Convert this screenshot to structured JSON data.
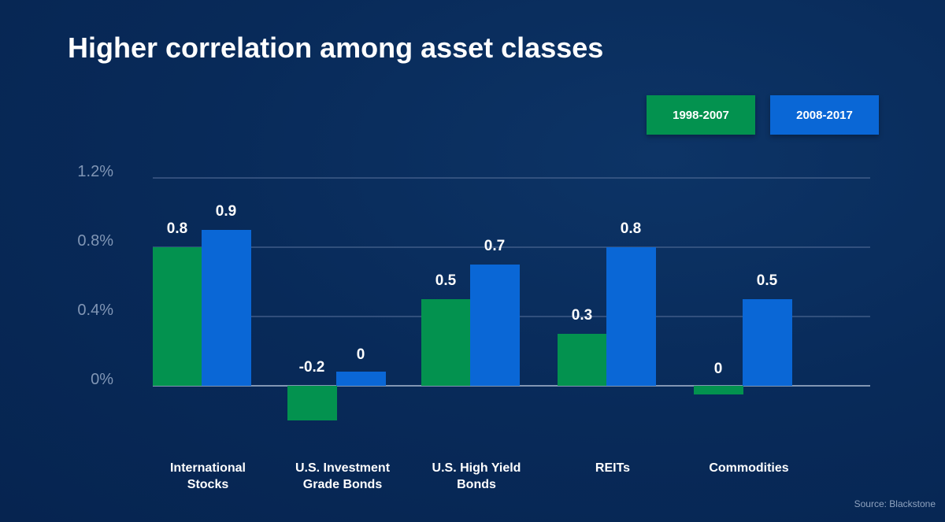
{
  "chart_data": {
    "type": "bar",
    "title": "Higher correlation among asset classes",
    "categories": [
      "International\nStocks",
      "U.S. Investment\nGrade Bonds",
      "U.S. High Yield\nBonds",
      "REITs",
      "Commodities"
    ],
    "series": [
      {
        "name": "1998-2007",
        "color": "#03924f",
        "values": [
          0.8,
          -0.2,
          0.5,
          0.3,
          0
        ]
      },
      {
        "name": "2008-2017",
        "color": "#0a67d6",
        "values": [
          0.9,
          0,
          0.7,
          0.8,
          0.5
        ]
      }
    ],
    "y_ticks": [
      "0%",
      "0.4%",
      "0.8%",
      "1.2%"
    ],
    "y_tick_values": [
      0,
      0.4,
      0.8,
      1.2
    ],
    "ylim": [
      -0.2,
      1.2
    ],
    "grid": true,
    "legend_position": "top-right",
    "source": "Source: Blackstone"
  }
}
